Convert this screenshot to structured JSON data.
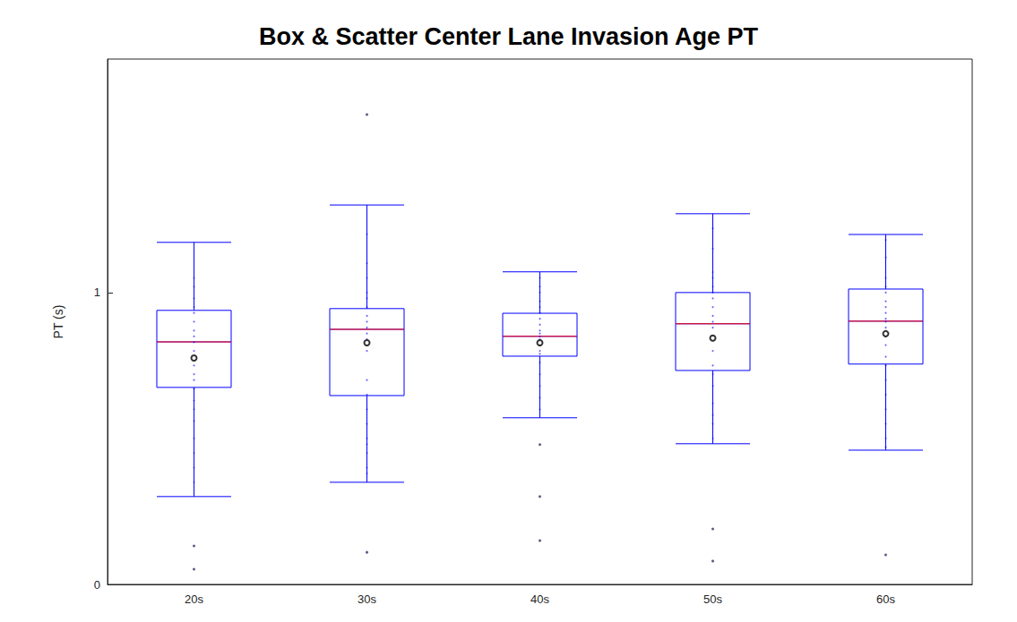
{
  "chart_data": {
    "type": "boxplot",
    "title": "Box & Scatter Center Lane Invasion Age PT",
    "ylabel": "PT (s)",
    "categories": [
      "20s",
      "30s",
      "40s",
      "50s",
      "60s"
    ],
    "boxes": [
      [
        0.301,
        0.675,
        0.831,
        0.939,
        1.172
      ],
      [
        0.35,
        0.647,
        0.874,
        0.945,
        1.3
      ],
      [
        0.571,
        0.782,
        0.85,
        0.929,
        1.071
      ],
      [
        0.482,
        0.733,
        0.893,
        1.0,
        1.27
      ],
      [
        0.46,
        0.755,
        0.902,
        1.012,
        1.199
      ]
    ],
    "means": [
      0.776,
      0.828,
      0.828,
      0.844,
      0.859
    ],
    "outliers": [
      [
        0.132,
        0.052
      ],
      [
        1.61,
        0.11
      ],
      [
        0.479,
        0.301,
        0.15
      ],
      [
        0.19,
        0.08
      ],
      [
        0.101
      ]
    ],
    "points": [
      [
        1.05,
        1.02,
        0.98,
        0.95,
        0.93,
        0.9,
        0.87,
        0.85,
        0.83,
        0.8,
        0.78,
        0.75,
        0.72,
        0.7,
        0.67,
        0.63,
        0.6,
        0.56,
        0.5,
        0.45,
        0.4,
        0.35
      ],
      [
        1.2,
        1.1,
        1.05,
        1.0,
        0.98,
        0.95,
        0.92,
        0.9,
        0.88,
        0.86,
        0.84,
        0.8,
        0.7,
        0.65,
        0.6,
        0.55,
        0.5,
        0.48,
        0.45,
        0.4,
        0.38
      ],
      [
        1.05,
        1.02,
        1.0,
        0.97,
        0.95,
        0.93,
        0.91,
        0.89,
        0.87,
        0.86,
        0.85,
        0.84,
        0.83,
        0.82,
        0.8,
        0.79,
        0.76,
        0.72,
        0.68,
        0.64,
        0.6
      ],
      [
        1.22,
        1.15,
        1.07,
        1.05,
        1.02,
        1.0,
        0.98,
        0.95,
        0.92,
        0.9,
        0.88,
        0.85,
        0.8,
        0.75,
        0.72,
        0.68,
        0.62,
        0.58,
        0.55,
        0.5
      ],
      [
        1.18,
        1.12,
        1.05,
        1.02,
        1.0,
        0.97,
        0.95,
        0.93,
        0.91,
        0.9,
        0.88,
        0.85,
        0.82,
        0.78,
        0.75,
        0.7,
        0.65,
        0.6,
        0.55,
        0.5,
        0.47
      ]
    ],
    "color": "#0000ff",
    "ylim": [
      0,
      1.8
    ],
    "yticks": [
      0,
      1
    ],
    "grid": false
  }
}
